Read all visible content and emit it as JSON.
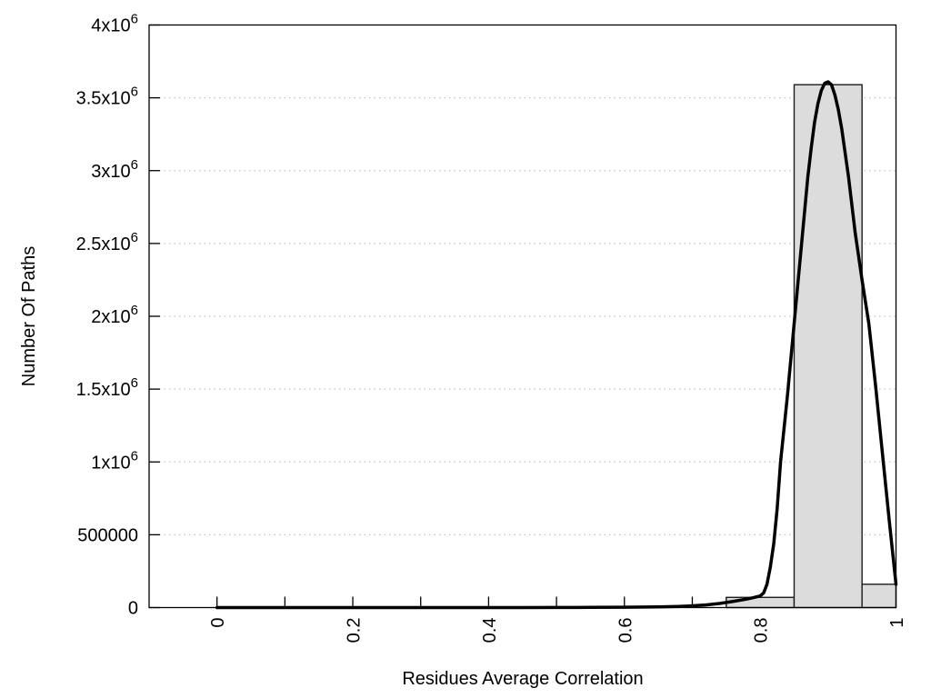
{
  "figure": {
    "background": "#ffffff",
    "foreground": "#000000"
  },
  "chart_data": {
    "type": "bar",
    "subtype": "histogram-with-fit-curve",
    "title": "",
    "xlabel": "Residues Average Correlation",
    "ylabel": "Number Of Paths",
    "xlim": [
      -0.1,
      1.0
    ],
    "ylim": [
      0,
      4000000
    ],
    "x_tick_step": 0.1,
    "x_tick_labels": [
      {
        "value": 0.0,
        "label": "0"
      },
      {
        "value": 0.2,
        "label": "0.2"
      },
      {
        "value": 0.4,
        "label": "0.4"
      },
      {
        "value": 0.6,
        "label": "0.6"
      },
      {
        "value": 0.8,
        "label": "0.8"
      },
      {
        "value": 1.0,
        "label": "1"
      }
    ],
    "y_ticks": [
      {
        "value": 0,
        "label": "0"
      },
      {
        "value": 500000,
        "label": "500000"
      },
      {
        "value": 1000000,
        "label": "1x10^6"
      },
      {
        "value": 1500000,
        "label": "1.5x10^6"
      },
      {
        "value": 2000000,
        "label": "2x10^6"
      },
      {
        "value": 2500000,
        "label": "2.5x10^6"
      },
      {
        "value": 3000000,
        "label": "3x10^6"
      },
      {
        "value": 3500000,
        "label": "3.5x10^6"
      },
      {
        "value": 4000000,
        "label": "4x10^6"
      }
    ],
    "grid": {
      "horizontal_dotted": true,
      "vertical": false,
      "color": "#c4c4c4"
    },
    "legend": "none",
    "bars": {
      "fill": "#dcdcdc",
      "stroke": "#1c1c1c",
      "bins": [
        {
          "x0": 0.75,
          "x1": 0.85,
          "count": 70000
        },
        {
          "x0": 0.85,
          "x1": 0.95,
          "count": 3590000
        },
        {
          "x0": 0.95,
          "x1": 1.0,
          "count": 160000
        }
      ]
    },
    "curve": {
      "name": "fit-curve",
      "color": "#000000",
      "stroke_width": 3.5,
      "peak": {
        "x": 0.9,
        "y": 3610000
      },
      "points": [
        [
          0.0,
          0
        ],
        [
          0.05,
          0
        ],
        [
          0.1,
          0
        ],
        [
          0.15,
          0
        ],
        [
          0.2,
          0
        ],
        [
          0.25,
          0
        ],
        [
          0.3,
          0
        ],
        [
          0.35,
          0
        ],
        [
          0.4,
          0
        ],
        [
          0.45,
          200
        ],
        [
          0.5,
          500
        ],
        [
          0.55,
          1200
        ],
        [
          0.6,
          2500
        ],
        [
          0.65,
          5000
        ],
        [
          0.68,
          8000
        ],
        [
          0.7,
          12000
        ],
        [
          0.72,
          18000
        ],
        [
          0.74,
          28000
        ],
        [
          0.76,
          42000
        ],
        [
          0.78,
          58000
        ],
        [
          0.79,
          68000
        ],
        [
          0.8,
          80000
        ],
        [
          0.805,
          100000
        ],
        [
          0.81,
          160000
        ],
        [
          0.815,
          280000
        ],
        [
          0.82,
          440000
        ],
        [
          0.825,
          680000
        ],
        [
          0.83,
          1000000
        ],
        [
          0.84,
          1450000
        ],
        [
          0.85,
          1950000
        ],
        [
          0.86,
          2450000
        ],
        [
          0.87,
          2950000
        ],
        [
          0.875,
          3150000
        ],
        [
          0.88,
          3330000
        ],
        [
          0.885,
          3460000
        ],
        [
          0.89,
          3550000
        ],
        [
          0.895,
          3600000
        ],
        [
          0.9,
          3610000
        ],
        [
          0.905,
          3590000
        ],
        [
          0.91,
          3520000
        ],
        [
          0.915,
          3420000
        ],
        [
          0.92,
          3290000
        ],
        [
          0.93,
          2960000
        ],
        [
          0.94,
          2570000
        ],
        [
          0.95,
          2250000
        ],
        [
          0.955,
          2100000
        ],
        [
          0.96,
          1950000
        ],
        [
          0.97,
          1520000
        ],
        [
          0.98,
          1060000
        ],
        [
          0.99,
          600000
        ],
        [
          1.0,
          160000
        ]
      ]
    }
  }
}
